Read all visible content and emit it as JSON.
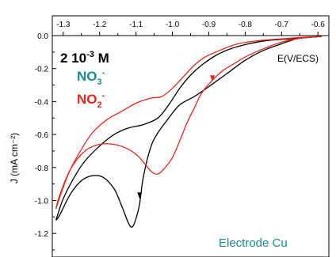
{
  "chart_data": {
    "type": "line",
    "title": "",
    "xlabel": "E(V/ECS)",
    "ylabel": "J (mA cm⁻²)",
    "xlim": [
      -1.33,
      -0.57
    ],
    "ylim": [
      -1.27,
      0.03
    ],
    "x_ticks": [
      -1.3,
      -1.2,
      -1.1,
      -1.0,
      -0.9,
      -0.8,
      -0.7,
      -0.6
    ],
    "x_tick_labels": [
      "-1.3",
      "-1.2",
      "-1.1",
      "-1.0",
      "-0.9",
      "-0.8",
      "-0.7",
      "-0.6"
    ],
    "y_ticks": [
      0.0,
      -0.2,
      -0.4,
      -0.6,
      -0.8,
      -1.0,
      -1.2
    ],
    "y_tick_labels": [
      "0.0",
      "-0.2",
      "-0.4",
      "-0.6",
      "-0.8",
      "-1.0",
      "-1.2"
    ],
    "x_axis_position": "top",
    "grid": false,
    "legend": null,
    "annotations": {
      "concentration": {
        "base": "2 10",
        "exp": "-3",
        "unit": " M"
      },
      "nitrate": {
        "base": "NO",
        "sub": "3",
        "sup": "-",
        "color": "#1a8a8a"
      },
      "nitrite": {
        "base": "NO",
        "sub": "2",
        "sup": "-",
        "color": "#e8261c"
      },
      "electrode": {
        "text": "Electrode Cu",
        "color": "#1a8a8a"
      }
    },
    "series": [
      {
        "color": "#000000",
        "forward": [
          [
            -0.59,
            -0.005
          ],
          [
            -0.62,
            -0.01
          ],
          [
            -0.66,
            -0.02
          ],
          [
            -0.7,
            -0.05
          ],
          [
            -0.75,
            -0.09
          ],
          [
            -0.8,
            -0.15
          ],
          [
            -0.85,
            -0.23
          ],
          [
            -0.9,
            -0.31
          ],
          [
            -0.94,
            -0.37
          ],
          [
            -0.98,
            -0.42
          ],
          [
            -1.01,
            -0.5
          ],
          [
            -1.04,
            -0.59
          ],
          [
            -1.06,
            -0.68
          ],
          [
            -1.08,
            -0.86
          ],
          [
            -1.09,
            -1.02
          ],
          [
            -1.1,
            -1.11
          ],
          [
            -1.11,
            -1.16
          ],
          [
            -1.12,
            -1.14
          ],
          [
            -1.14,
            -1.03
          ],
          [
            -1.16,
            -0.93
          ],
          [
            -1.19,
            -0.86
          ],
          [
            -1.22,
            -0.85
          ],
          [
            -1.25,
            -0.88
          ],
          [
            -1.28,
            -0.96
          ],
          [
            -1.31,
            -1.09
          ],
          [
            -1.32,
            -1.12
          ]
        ],
        "reverse": [
          [
            -1.32,
            -1.12
          ],
          [
            -1.3,
            -0.99
          ],
          [
            -1.27,
            -0.86
          ],
          [
            -1.24,
            -0.76
          ],
          [
            -1.2,
            -0.67
          ],
          [
            -1.16,
            -0.6
          ],
          [
            -1.12,
            -0.56
          ],
          [
            -1.08,
            -0.54
          ],
          [
            -1.04,
            -0.5
          ],
          [
            -1.01,
            -0.42
          ],
          [
            -0.98,
            -0.32
          ],
          [
            -0.95,
            -0.24
          ],
          [
            -0.92,
            -0.18
          ],
          [
            -0.88,
            -0.12
          ],
          [
            -0.84,
            -0.08
          ],
          [
            -0.79,
            -0.05
          ],
          [
            -0.74,
            -0.03
          ],
          [
            -0.68,
            -0.02
          ],
          [
            -0.62,
            -0.01
          ],
          [
            -0.59,
            -0.005
          ]
        ],
        "arrows": [
          [
            -1.09,
            -0.98,
            "down"
          ]
        ]
      },
      {
        "color": "#e8261c",
        "forward": [
          [
            -0.59,
            -0.005
          ],
          [
            -0.62,
            -0.01
          ],
          [
            -0.66,
            -0.02
          ],
          [
            -0.7,
            -0.04
          ],
          [
            -0.75,
            -0.08
          ],
          [
            -0.8,
            -0.13
          ],
          [
            -0.83,
            -0.17
          ],
          [
            -0.86,
            -0.21
          ],
          [
            -0.89,
            -0.27
          ],
          [
            -0.92,
            -0.35
          ],
          [
            -0.94,
            -0.44
          ],
          [
            -0.96,
            -0.53
          ],
          [
            -0.98,
            -0.64
          ],
          [
            -1.0,
            -0.74
          ],
          [
            -1.02,
            -0.8
          ],
          [
            -1.04,
            -0.84
          ],
          [
            -1.06,
            -0.82
          ],
          [
            -1.09,
            -0.74
          ],
          [
            -1.12,
            -0.69
          ],
          [
            -1.16,
            -0.66
          ],
          [
            -1.2,
            -0.66
          ],
          [
            -1.24,
            -0.7
          ],
          [
            -1.28,
            -0.81
          ],
          [
            -1.31,
            -0.97
          ],
          [
            -1.32,
            -1.05
          ]
        ],
        "reverse": [
          [
            -1.32,
            -1.05
          ],
          [
            -1.3,
            -0.92
          ],
          [
            -1.28,
            -0.81
          ],
          [
            -1.25,
            -0.69
          ],
          [
            -1.22,
            -0.59
          ],
          [
            -1.18,
            -0.51
          ],
          [
            -1.14,
            -0.46
          ],
          [
            -1.1,
            -0.41
          ],
          [
            -1.06,
            -0.38
          ],
          [
            -1.03,
            -0.37
          ],
          [
            -1.0,
            -0.32
          ],
          [
            -0.97,
            -0.25
          ],
          [
            -0.94,
            -0.18
          ],
          [
            -0.91,
            -0.13
          ],
          [
            -0.87,
            -0.09
          ],
          [
            -0.82,
            -0.05
          ],
          [
            -0.76,
            -0.03
          ],
          [
            -0.7,
            -0.02
          ],
          [
            -0.64,
            -0.01
          ],
          [
            -0.59,
            -0.005
          ]
        ],
        "arrows": [
          [
            -0.89,
            -0.27,
            "down"
          ]
        ]
      }
    ]
  }
}
